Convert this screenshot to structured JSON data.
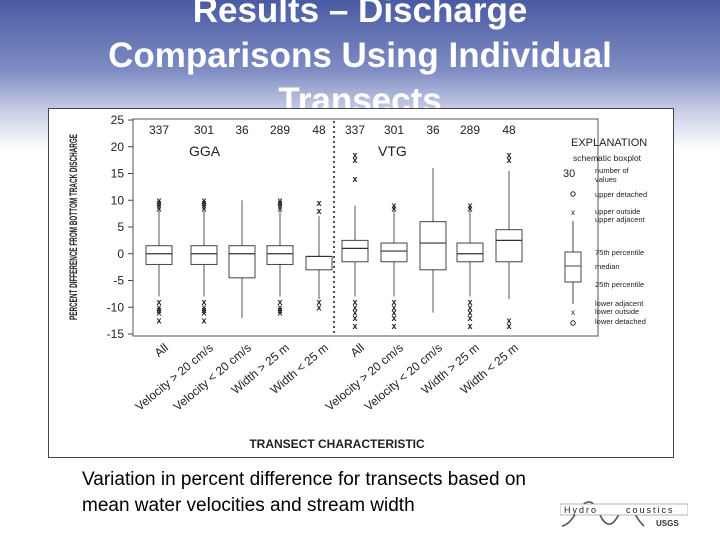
{
  "slide": {
    "title_lines": [
      "Results – Discharge",
      "Comparisons Using Individual",
      "Transects"
    ],
    "caption_lines": [
      "Variation in percent difference for transects based on",
      "mean water velocities and stream width"
    ],
    "logo": {
      "word_left": "Hydro",
      "word_right": "coustics",
      "agency": "USGS"
    }
  },
  "chart_data": {
    "type": "box",
    "ylabel": "PERCENT DIFFERENCE FROM BOTTOM TRACK DISCHARGE",
    "xlabel": "TRANSECT CHARACTERISTIC",
    "ylim": [
      -15,
      25
    ],
    "yticks": [
      -15,
      -10,
      -5,
      0,
      5,
      10,
      15,
      20,
      25
    ],
    "categories": [
      "All",
      "Velocity > 20 cm/s",
      "Velocity < 20 cm/s",
      "Width > 25 m",
      "Width < 25 m",
      "All",
      "Velocity > 20 cm/s",
      "Velocity < 20 cm/s",
      "Width > 25 m",
      "Width < 25 m"
    ],
    "groups": [
      {
        "label": "GGA",
        "counts": [
          337,
          301,
          36,
          289,
          48
        ]
      },
      {
        "label": "VTG",
        "counts": [
          337,
          301,
          36,
          289,
          48
        ]
      }
    ],
    "boxes": [
      {
        "q1": -2,
        "median": 0,
        "q3": 1.5,
        "lower_adj": -8,
        "upper_adj": 8,
        "outliers_hi": [
          8.5,
          9,
          9.5,
          10
        ],
        "outliers_lo": [
          -9,
          -10,
          -10.5,
          -11,
          -12.5
        ]
      },
      {
        "q1": -2,
        "median": 0,
        "q3": 1.5,
        "lower_adj": -8,
        "upper_adj": 8,
        "outliers_hi": [
          8.5,
          9,
          9.5,
          10
        ],
        "outliers_lo": [
          -9,
          -10,
          -10.5,
          -11,
          -12.5
        ]
      },
      {
        "q1": -4.5,
        "median": 0,
        "q3": 1.5,
        "lower_adj": -12,
        "upper_adj": 10,
        "outliers_hi": [],
        "outliers_lo": []
      },
      {
        "q1": -2,
        "median": 0,
        "q3": 1.5,
        "lower_adj": -8,
        "upper_adj": 8,
        "outliers_hi": [
          8.5,
          9,
          9.5,
          10
        ],
        "outliers_lo": [
          -9,
          -10,
          -10.5,
          -11
        ]
      },
      {
        "q1": -3,
        "median": -0.5,
        "q3": -0.5,
        "lower_adj": -8.5,
        "upper_adj": 7,
        "outliers_hi": [
          8,
          9.5
        ],
        "outliers_lo": [
          -9,
          -10
        ]
      },
      {
        "q1": -1.5,
        "median": 1,
        "q3": 2.5,
        "lower_adj": -8,
        "upper_adj": 9,
        "outliers_hi": [
          14,
          17.5,
          18.5
        ],
        "outliers_lo": [
          -9,
          -10,
          -11,
          -12,
          -13.5
        ]
      },
      {
        "q1": -1.5,
        "median": 0.5,
        "q3": 2,
        "lower_adj": -8,
        "upper_adj": 8,
        "outliers_hi": [
          8.5,
          9
        ],
        "outliers_lo": [
          -9,
          -10,
          -11,
          -12,
          -13.5
        ]
      },
      {
        "q1": -3,
        "median": 2,
        "q3": 6,
        "lower_adj": -11,
        "upper_adj": 16,
        "outliers_hi": [],
        "outliers_lo": []
      },
      {
        "q1": -1.5,
        "median": 0,
        "q3": 2,
        "lower_adj": -8,
        "upper_adj": 8,
        "outliers_hi": [
          8.5,
          9
        ],
        "outliers_lo": [
          -9,
          -10,
          -11,
          -12,
          -13.5
        ]
      },
      {
        "q1": -1.5,
        "median": 2.5,
        "q3": 4.5,
        "lower_adj": -8.5,
        "upper_adj": 15.5,
        "outliers_hi": [
          17.5,
          18.5
        ],
        "outliers_lo": [
          -12.5,
          -13.5
        ]
      }
    ],
    "explanation": {
      "title": "EXPLANATION",
      "subtitle": "schematic boxplot",
      "count_example": "30",
      "items": {
        "count": [
          "number of",
          "values"
        ],
        "upper_detached": "upper detached",
        "upper_outside_adjacent": [
          "upper outside",
          "upper adjacent"
        ],
        "q75": "75th percentile",
        "median": "median",
        "q25": "25th percentile",
        "lower_adj_outside_detached": [
          "lower adjacent",
          "lower outside",
          "lower detached"
        ]
      }
    }
  }
}
